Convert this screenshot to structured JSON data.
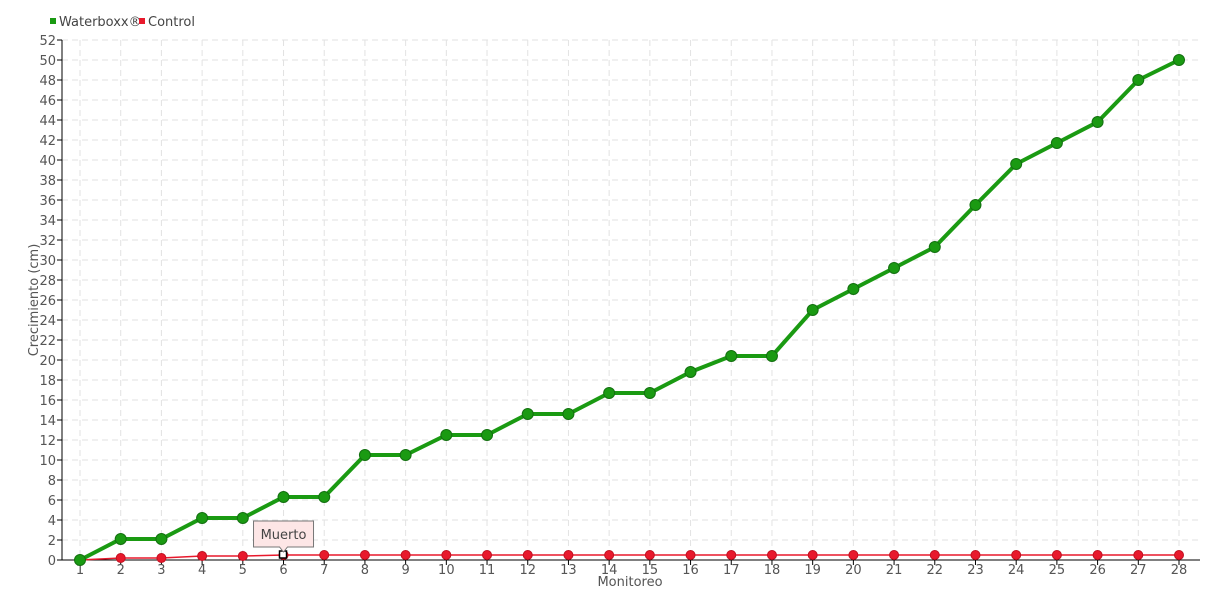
{
  "chart_data": {
    "type": "line",
    "title": "",
    "xlabel": "Monitoreo",
    "ylabel": "Crecimiento (cm)",
    "categories": [
      "1",
      "2",
      "3",
      "4",
      "5",
      "6",
      "7",
      "8",
      "9",
      "10",
      "11",
      "12",
      "13",
      "14",
      "15",
      "16",
      "17",
      "18",
      "19",
      "20",
      "21",
      "22",
      "23",
      "24",
      "25",
      "26",
      "27",
      "28"
    ],
    "ylim": [
      0,
      52
    ],
    "ytick_step": 2,
    "grid": true,
    "legend_position": "top-left",
    "series": [
      {
        "name": "Waterboxx®",
        "color": "#1a9a12",
        "values": [
          0,
          2.1,
          2.1,
          4.2,
          4.2,
          6.3,
          6.3,
          10.5,
          10.5,
          12.5,
          12.5,
          14.6,
          14.6,
          16.7,
          16.7,
          18.8,
          20.4,
          20.4,
          25,
          27.1,
          29.2,
          31.3,
          35.5,
          39.6,
          41.7,
          43.8,
          48,
          50
        ]
      },
      {
        "name": "Control",
        "color": "#e8192c",
        "values": [
          0,
          0.2,
          0.2,
          0.4,
          0.4,
          0.5,
          0.5,
          0.5,
          0.5,
          0.5,
          0.5,
          0.5,
          0.5,
          0.5,
          0.5,
          0.5,
          0.5,
          0.5,
          0.5,
          0.5,
          0.5,
          0.5,
          0.5,
          0.5,
          0.5,
          0.5,
          0.5,
          0.5
        ]
      }
    ],
    "annotations": [
      {
        "series": "Control",
        "category": "6",
        "text": "Muerto"
      }
    ]
  }
}
